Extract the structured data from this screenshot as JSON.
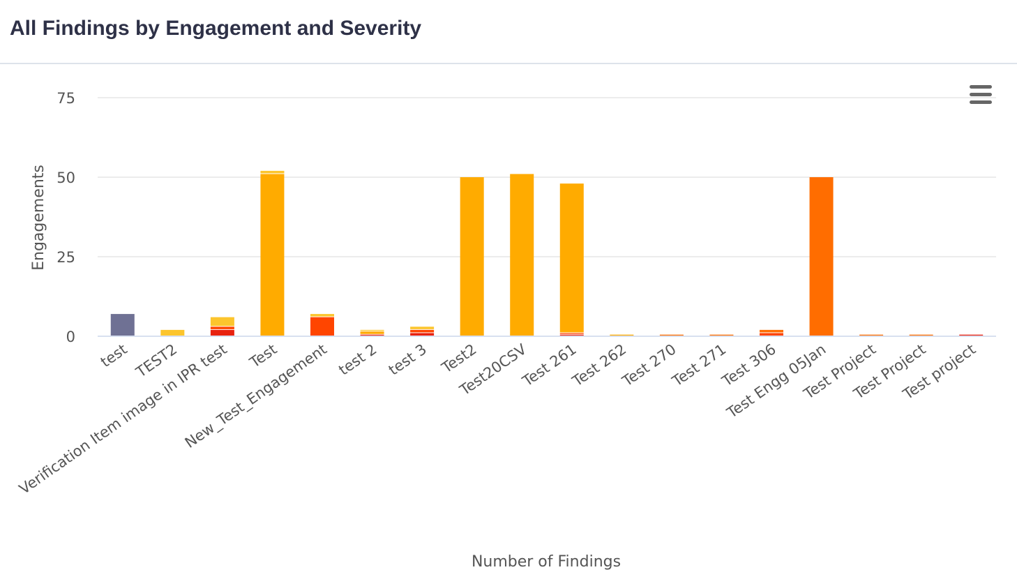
{
  "header": {
    "title": "All Findings by Engagement and Severity"
  },
  "menu": {
    "icon": "hamburger-menu-icon"
  },
  "chart_data": {
    "type": "bar",
    "stacked": true,
    "title": "All Findings by Engagement and Severity",
    "xlabel": "Number of Findings",
    "ylabel": "Engagements",
    "ylim": [
      0,
      75
    ],
    "yticks": [
      0,
      25,
      50,
      75
    ],
    "grid": true,
    "categories": [
      "test",
      "TEST2",
      "Verification Item image in IPR test",
      "Test",
      "New_Test_Engagement",
      "test 2",
      "test 3",
      "Test2",
      "Test20CSV",
      "Test 261",
      "Test 262",
      "Test 270",
      "Test 271",
      "Test 306",
      "Test Engg 05Jan",
      "Test Project",
      "Test Project",
      "Test project"
    ],
    "series": [
      {
        "color": "#6f7194",
        "values": [
          7,
          0,
          0,
          0,
          0,
          0,
          0,
          0,
          0,
          0,
          0,
          0,
          0,
          0,
          0,
          0,
          0,
          0
        ]
      },
      {
        "color": "#e8220f",
        "values": [
          0,
          0,
          2,
          0,
          0,
          0.5,
          1,
          0,
          0,
          0.5,
          0,
          0,
          0,
          0,
          0,
          0,
          0,
          0.5
        ]
      },
      {
        "color": "#ff4500",
        "values": [
          0,
          0,
          1,
          0,
          6,
          0,
          1,
          0,
          0,
          0.5,
          0,
          0,
          0,
          1,
          0,
          0,
          0,
          0
        ]
      },
      {
        "color": "#ff6d00",
        "values": [
          0,
          0,
          0,
          0,
          0,
          0,
          0,
          0,
          0,
          0,
          0,
          0.5,
          0.5,
          1,
          50,
          0.5,
          0.5,
          0
        ]
      },
      {
        "color": "#ffab00",
        "values": [
          0,
          0,
          0,
          51,
          0,
          1,
          0,
          50,
          51,
          47,
          0.5,
          0,
          0,
          0,
          0,
          0,
          0,
          0
        ]
      },
      {
        "color": "#fcc52d",
        "values": [
          0,
          2,
          3,
          1,
          1,
          0.5,
          1,
          0,
          0,
          0,
          0,
          0,
          0,
          0,
          0,
          0,
          0,
          0
        ]
      }
    ]
  }
}
